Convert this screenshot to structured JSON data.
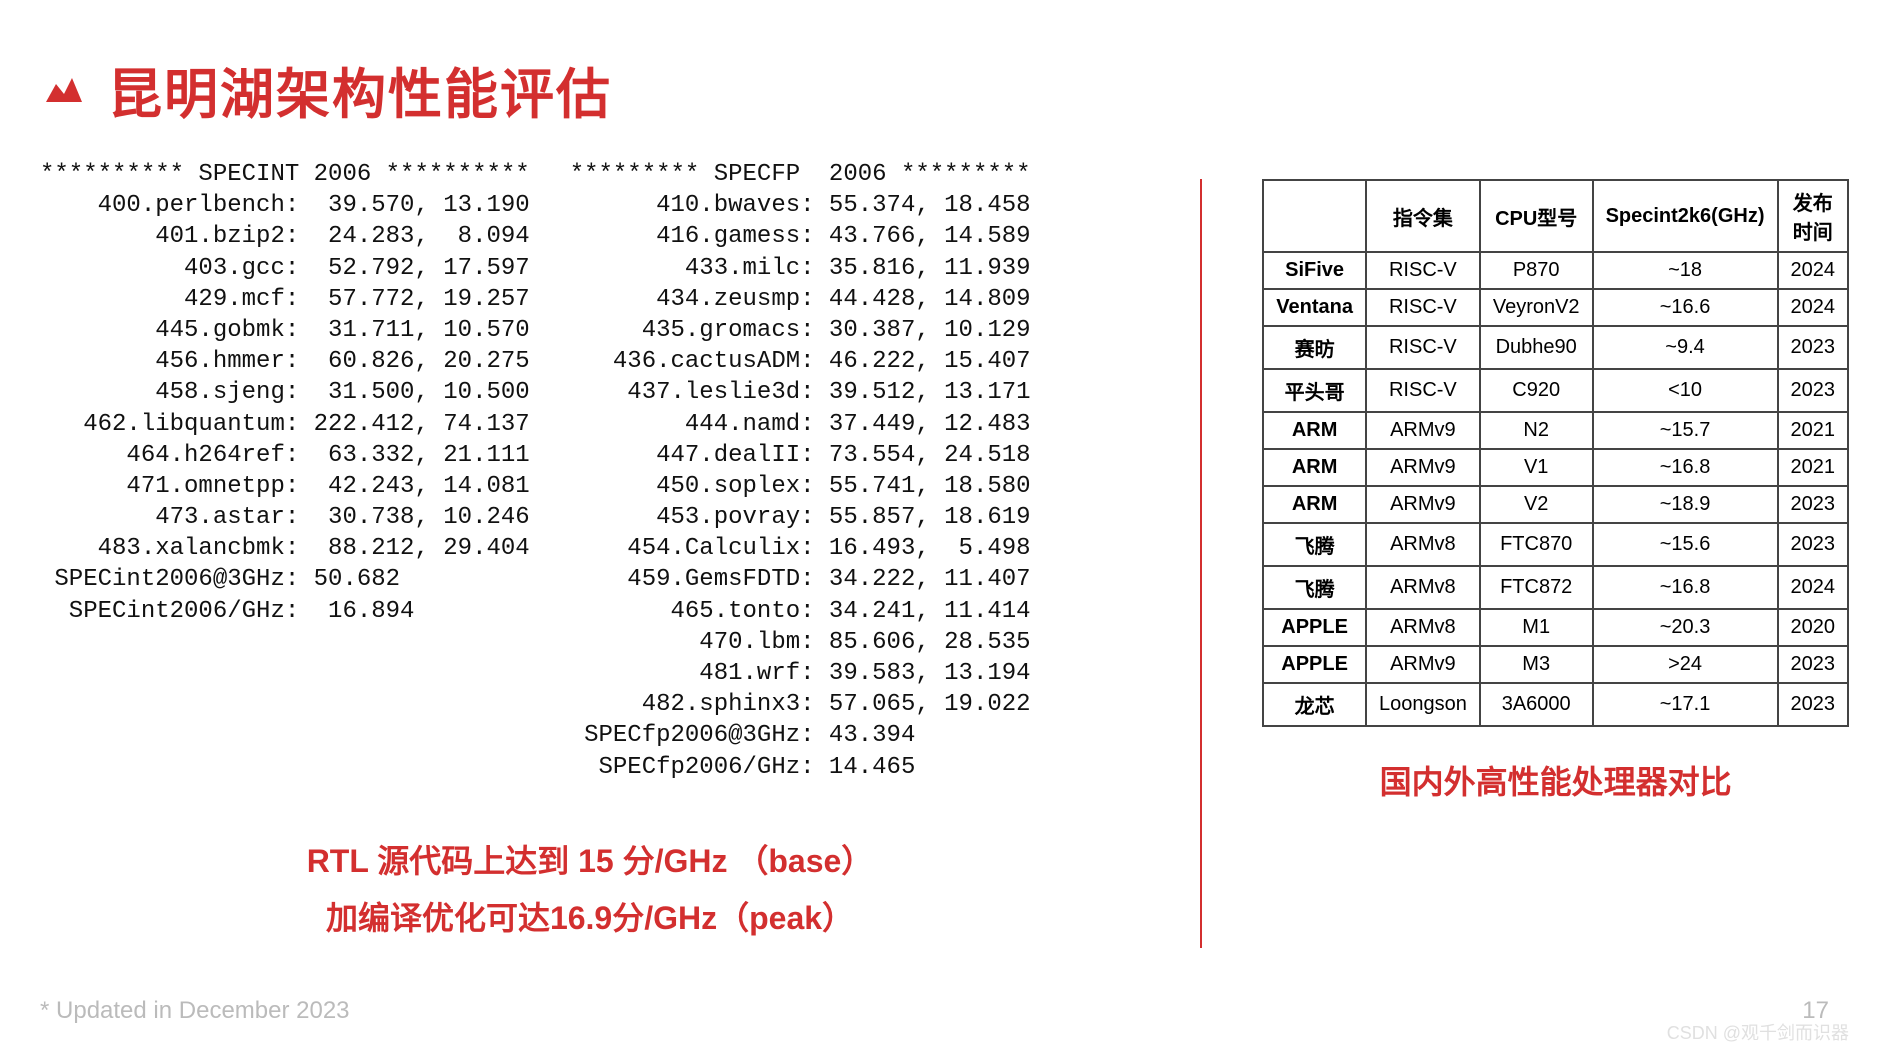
{
  "header": {
    "title": "昆明湖架构性能评估"
  },
  "specint": {
    "header": "********** SPECINT 2006 **********",
    "rows": [
      {
        "label": "400.perlbench:",
        "v1": "39.570,",
        "v2": "13.190"
      },
      {
        "label": "401.bzip2:",
        "v1": "24.283,",
        "v2": " 8.094"
      },
      {
        "label": "403.gcc:",
        "v1": "52.792,",
        "v2": "17.597"
      },
      {
        "label": "429.mcf:",
        "v1": "57.772,",
        "v2": "19.257"
      },
      {
        "label": "445.gobmk:",
        "v1": "31.711,",
        "v2": "10.570"
      },
      {
        "label": "456.hmmer:",
        "v1": "60.826,",
        "v2": "20.275"
      },
      {
        "label": "458.sjeng:",
        "v1": "31.500,",
        "v2": "10.500"
      },
      {
        "label": "462.libquantum:",
        "v1": "222.412,",
        "v2": "74.137"
      },
      {
        "label": "464.h264ref:",
        "v1": "63.332,",
        "v2": "21.111"
      },
      {
        "label": "471.omnetpp:",
        "v1": "42.243,",
        "v2": "14.081"
      },
      {
        "label": "473.astar:",
        "v1": "30.738,",
        "v2": "10.246"
      },
      {
        "label": "483.xalancbmk:",
        "v1": "88.212,",
        "v2": "29.404"
      }
    ],
    "summary1": {
      "label": "SPECint2006@3GHz:",
      "val": "50.682"
    },
    "summary2": {
      "label": "SPECint2006/GHz:",
      "val": " 16.894"
    }
  },
  "specfp": {
    "header": "********* SPECFP  2006 *********",
    "rows": [
      {
        "label": "410.bwaves:",
        "v1": "55.374,",
        "v2": "18.458"
      },
      {
        "label": "416.gamess:",
        "v1": "43.766,",
        "v2": "14.589"
      },
      {
        "label": "433.milc:",
        "v1": "35.816,",
        "v2": "11.939"
      },
      {
        "label": "434.zeusmp:",
        "v1": "44.428,",
        "v2": "14.809"
      },
      {
        "label": "435.gromacs:",
        "v1": "30.387,",
        "v2": "10.129"
      },
      {
        "label": "436.cactusADM:",
        "v1": "46.222,",
        "v2": "15.407"
      },
      {
        "label": "437.leslie3d:",
        "v1": "39.512,",
        "v2": "13.171"
      },
      {
        "label": "444.namd:",
        "v1": "37.449,",
        "v2": "12.483"
      },
      {
        "label": "447.dealII:",
        "v1": "73.554,",
        "v2": "24.518"
      },
      {
        "label": "450.soplex:",
        "v1": "55.741,",
        "v2": "18.580"
      },
      {
        "label": "453.povray:",
        "v1": "55.857,",
        "v2": "18.619"
      },
      {
        "label": "454.Calculix:",
        "v1": "16.493,",
        "v2": " 5.498"
      },
      {
        "label": "459.GemsFDTD:",
        "v1": "34.222,",
        "v2": "11.407"
      },
      {
        "label": "465.tonto:",
        "v1": "34.241,",
        "v2": "11.414"
      },
      {
        "label": "470.lbm:",
        "v1": "85.606,",
        "v2": "28.535"
      },
      {
        "label": "481.wrf:",
        "v1": "39.583,",
        "v2": "13.194"
      },
      {
        "label": "482.sphinx3:",
        "v1": "57.065,",
        "v2": "19.022"
      }
    ],
    "summary1": {
      "label": "SPECfp2006@3GHz:",
      "val": "43.394"
    },
    "summary2": {
      "label": "SPECfp2006/GHz:",
      "val": "14.465"
    }
  },
  "left_caption_line1": "RTL 源代码上达到 15 分/GHz （base）",
  "left_caption_line2": "加编译优化可达16.9分/GHz（peak）",
  "table": {
    "columns": [
      "",
      "指令集",
      "CPU型号",
      "Specint2k6(GHz)",
      "发布时间"
    ],
    "rows": [
      [
        "SiFive",
        "RISC-V",
        "P870",
        "~18",
        "2024"
      ],
      [
        "Ventana",
        "RISC-V",
        "VeyronV2",
        "~16.6",
        "2024"
      ],
      [
        "赛昉",
        "RISC-V",
        "Dubhe90",
        "~9.4",
        "2023"
      ],
      [
        "平头哥",
        "RISC-V",
        "C920",
        "<10",
        "2023"
      ],
      [
        "ARM",
        "ARMv9",
        "N2",
        "~15.7",
        "2021"
      ],
      [
        "ARM",
        "ARMv9",
        "V1",
        "~16.8",
        "2021"
      ],
      [
        "ARM",
        "ARMv9",
        "V2",
        "~18.9",
        "2023"
      ],
      [
        "飞腾",
        "ARMv8",
        "FTC870",
        "~15.6",
        "2023"
      ],
      [
        "飞腾",
        "ARMv8",
        "FTC872",
        "~16.8",
        "2024"
      ],
      [
        "APPLE",
        "ARMv8",
        "M1",
        "~20.3",
        "2020"
      ],
      [
        "APPLE",
        "ARMv9",
        "M3",
        ">24",
        "2023"
      ],
      [
        "龙芯",
        "Loongson",
        "3A6000",
        "~17.1",
        "2023"
      ]
    ]
  },
  "right_caption": "国内外高性能处理器对比",
  "footer": {
    "updated": "* Updated in December 2023",
    "page": "17"
  },
  "watermark": "CSDN @观千剑而识器",
  "style": {
    "accent_color": "#d32f2f",
    "text_color": "#111",
    "border_color": "#444",
    "footer_color": "#bbb",
    "mono_font": "Courier New",
    "body_font": "Microsoft YaHei"
  }
}
